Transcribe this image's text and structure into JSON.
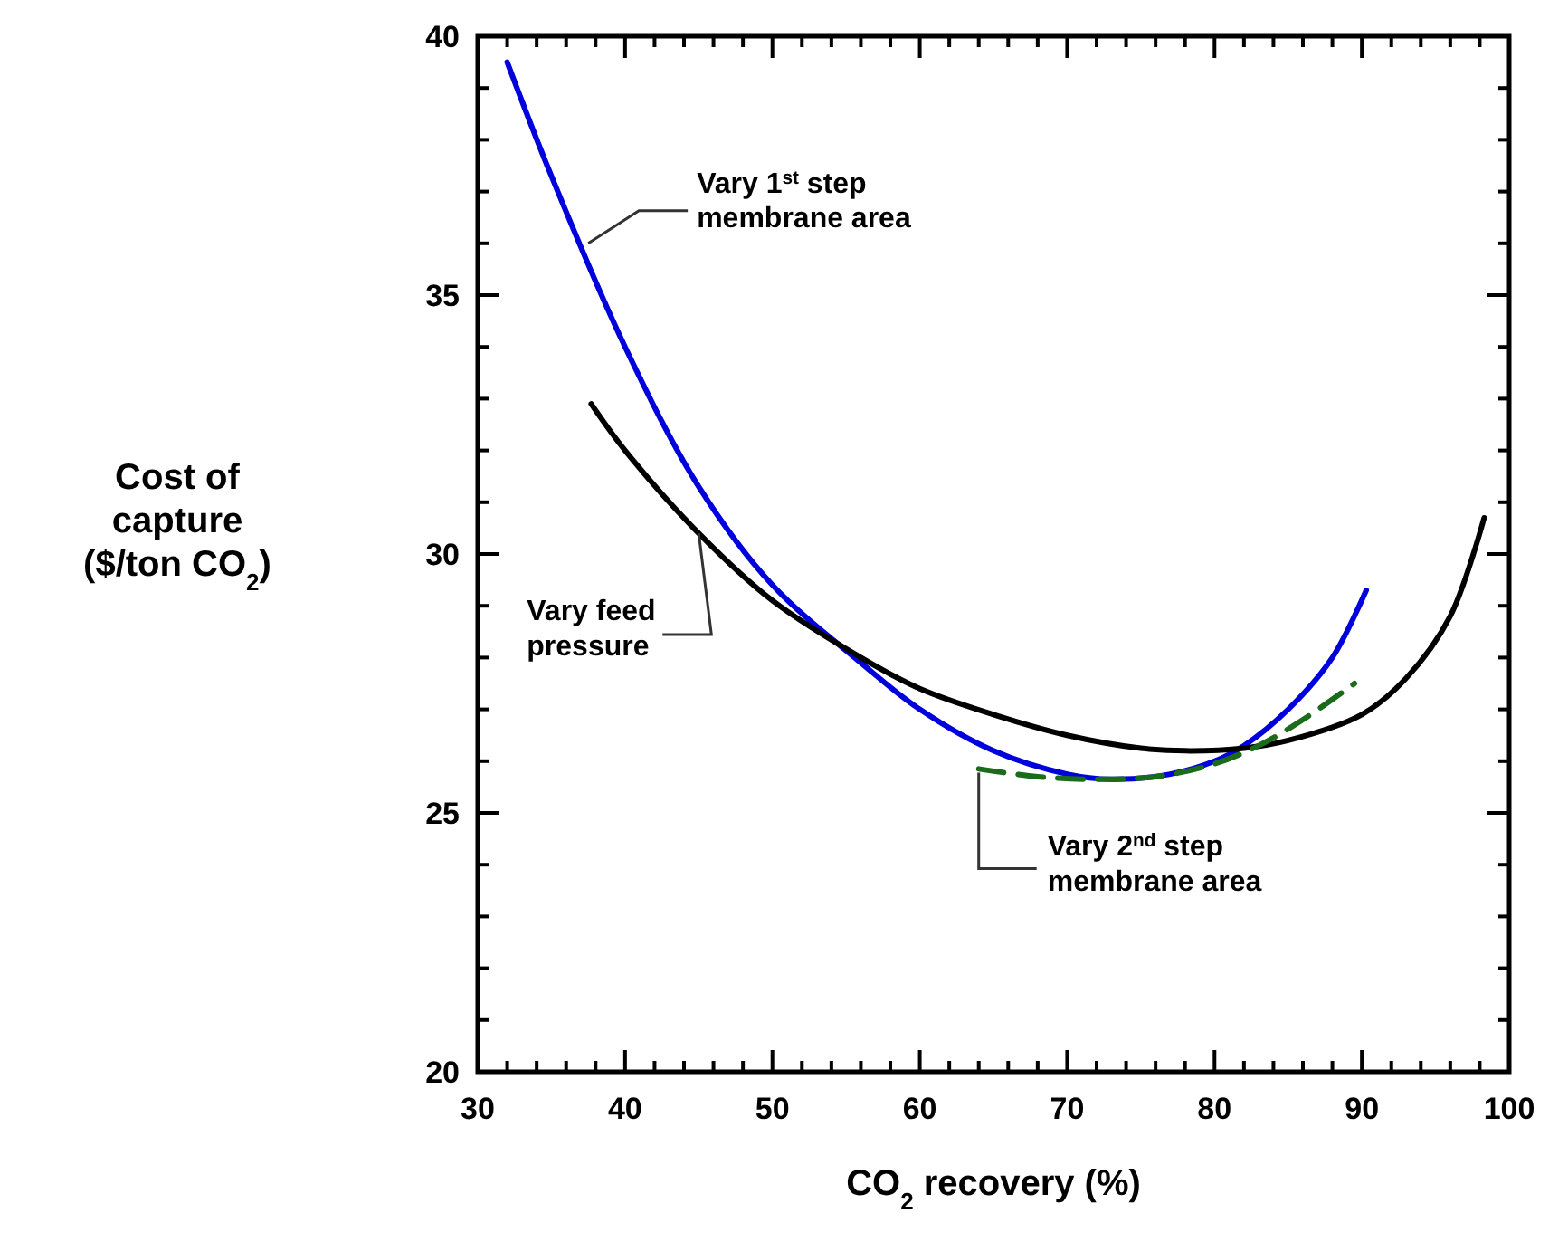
{
  "chart_data": {
    "type": "line",
    "xlabel": "CO$_{2}$ recovery (%)",
    "ylabel": "Cost of\ncapture\n($/ton CO$_{2}$)",
    "xlim": [
      30,
      100
    ],
    "ylim": [
      20,
      40
    ],
    "xticks": [
      30,
      {
        "value": 32,
        "label": null
      },
      {
        "value": 34,
        "label": null
      },
      {
        "value": 36,
        "label": null
      },
      {
        "value": 38,
        "label": null
      },
      40,
      {
        "value": 42,
        "label": null
      },
      {
        "value": 44,
        "label": null
      },
      {
        "value": 46,
        "label": null
      },
      {
        "value": 48,
        "label": null
      },
      50,
      {
        "value": 52,
        "label": null
      },
      {
        "value": 54,
        "label": null
      },
      {
        "value": 56,
        "label": null
      },
      {
        "value": 58,
        "label": null
      },
      60,
      {
        "value": 62,
        "label": null
      },
      {
        "value": 64,
        "label": null
      },
      {
        "value": 66,
        "label": null
      },
      {
        "value": 68,
        "label": null
      },
      70,
      {
        "value": 72,
        "label": null
      },
      {
        "value": 74,
        "label": null
      },
      {
        "value": 76,
        "label": null
      },
      {
        "value": 78,
        "label": null
      },
      80,
      {
        "value": 82,
        "label": null
      },
      {
        "value": 84,
        "label": null
      },
      {
        "value": 86,
        "label": null
      },
      {
        "value": 88,
        "label": null
      },
      90,
      {
        "value": 92,
        "label": null
      },
      {
        "value": 94,
        "label": null
      },
      {
        "value": 96,
        "label": null
      },
      {
        "value": 98,
        "label": null
      },
      100
    ],
    "yticks": [
      20,
      {
        "value": 21,
        "label": null
      },
      {
        "value": 22,
        "label": null
      },
      {
        "value": 23,
        "label": null
      },
      {
        "value": 24,
        "label": null
      },
      25,
      {
        "value": 26,
        "label": null
      },
      {
        "value": 27,
        "label": null
      },
      {
        "value": 28,
        "label": null
      },
      {
        "value": 29,
        "label": null
      },
      30,
      {
        "value": 31,
        "label": null
      },
      {
        "value": 32,
        "label": null
      },
      {
        "value": 33,
        "label": null
      },
      {
        "value": 34,
        "label": null
      },
      35,
      {
        "value": 36,
        "label": null
      },
      {
        "value": 37,
        "label": null
      },
      {
        "value": 38,
        "label": null
      },
      {
        "value": 39,
        "label": null
      },
      40
    ],
    "grid": false,
    "marker": "none",
    "series": [
      {
        "color": "#0000dd",
        "x": [
          32,
          35,
          40,
          45,
          50,
          56,
          60,
          65,
          70,
          73,
          77,
          80,
          82,
          85,
          88,
          90.3
        ],
        "values": [
          39.5,
          37.3,
          34.0,
          31.3,
          29.4,
          27.9,
          27.0,
          26.2,
          25.75,
          25.65,
          25.75,
          26.0,
          26.3,
          27.0,
          28.0,
          29.3
        ]
      },
      {
        "color": "#000000",
        "x": [
          37.7,
          40,
          45,
          50,
          56,
          60,
          65,
          70,
          75,
          78,
          82,
          85,
          90,
          93,
          96,
          98.3
        ],
        "values": [
          32.9,
          32.0,
          30.4,
          29.1,
          28.0,
          27.4,
          26.9,
          26.5,
          26.25,
          26.2,
          26.25,
          26.4,
          26.9,
          27.6,
          28.8,
          30.7
        ]
      },
      {
        "color": "#1a6b1a",
        "line_style": "dashed",
        "x": [
          64,
          68,
          72,
          76,
          80,
          83,
          86,
          89.5
        ],
        "values": [
          25.85,
          25.7,
          25.65,
          25.7,
          25.95,
          26.3,
          26.8,
          27.5
        ]
      }
    ],
    "annotations": [
      {
        "text": "Vary 1$^{st}$ step\nmembrane area",
        "x": 37.5,
        "y": 36.0
      },
      {
        "text": "Vary feed\npressure",
        "x": 45,
        "y": 30.4
      },
      {
        "text": "Vary 2$^{nd}$ step\nmembrane area",
        "x": 64,
        "y": 25.85
      }
    ]
  }
}
